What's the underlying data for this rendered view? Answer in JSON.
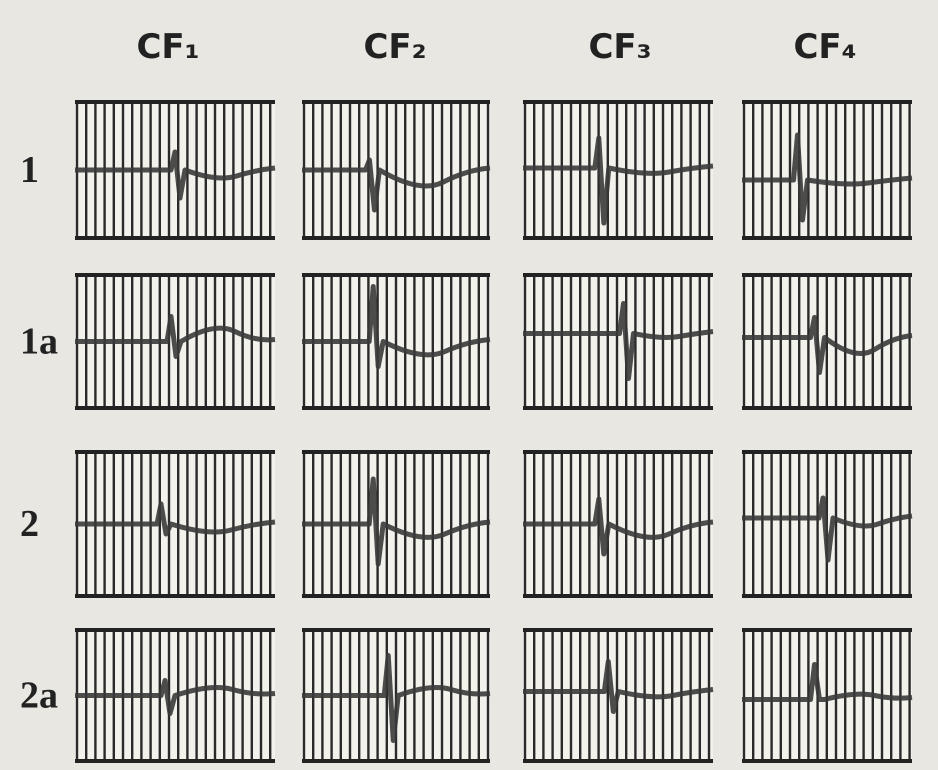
{
  "columns": [
    "CF₁",
    "CF₂",
    "CF₃",
    "CF₄"
  ],
  "rows": [
    "1",
    "1a",
    "2",
    "2a"
  ]
}
